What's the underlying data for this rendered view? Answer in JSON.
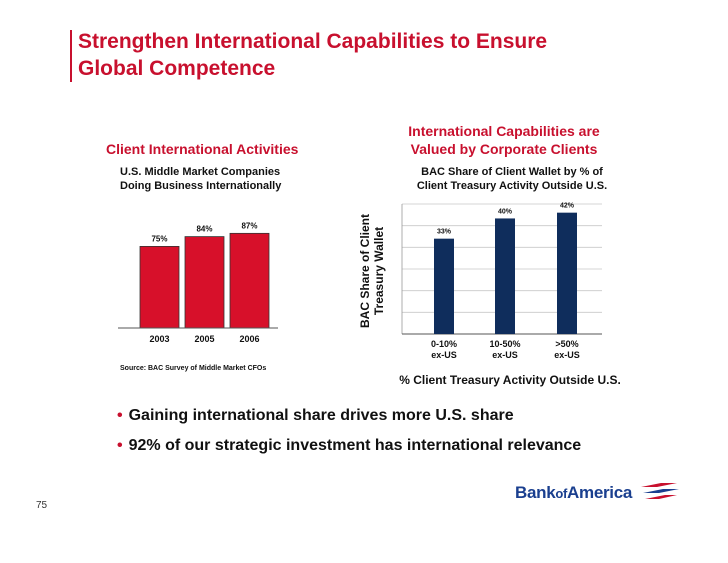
{
  "slide": {
    "title_line1": "Strengthen International Capabilities to Ensure",
    "title_line2": "Global Competence",
    "page_number": "75"
  },
  "left_panel": {
    "heading": "Client International Activities",
    "subtitle_line1": "U.S. Middle Market Companies",
    "subtitle_line2": "Doing Business Internationally",
    "source": "Source:  BAC Survey of Middle Market CFOs"
  },
  "right_panel": {
    "heading_line1": "International Capabilities are",
    "heading_line2": "Valued by Corporate Clients",
    "subtitle_line1": "BAC Share of Client Wallet by % of",
    "subtitle_line2": "Client Treasury Activity Outside U.S."
  },
  "chart_data": [
    {
      "type": "bar",
      "title": "U.S. Middle Market Companies Doing Business Internationally",
      "categories": [
        "2003",
        "2005",
        "2006"
      ],
      "values": [
        75,
        84,
        87
      ],
      "data_labels": [
        "75%",
        "84%",
        "87%"
      ],
      "ylim": [
        0,
        100
      ],
      "xlabel": "",
      "ylabel": "",
      "color": "#d7102a",
      "grid": false
    },
    {
      "type": "bar",
      "title": "BAC Share of Client Wallet by % of Client Treasury Activity Outside U.S.",
      "categories": [
        [
          "0-10%",
          "ex-US"
        ],
        [
          "10-50%",
          "ex-US"
        ],
        [
          ">50%",
          "ex-US"
        ]
      ],
      "values": [
        33,
        40,
        42
      ],
      "data_labels": [
        "33%",
        "40%",
        "42%"
      ],
      "ylim": [
        0,
        45
      ],
      "xlabel": "% Client Treasury Activity Outside U.S.",
      "ylabel_line1": "BAC Share of Client",
      "ylabel_line2": "Treasury Wallet",
      "color": "#0f2d5c",
      "grid": true
    }
  ],
  "bullets": [
    "Gaining international share drives more U.S. share",
    "92% of our strategic investment has international relevance"
  ],
  "logo": {
    "text_bank": "Bank",
    "text_of": "of",
    "text_america": "America",
    "colors": {
      "blue": "#1a3f8f",
      "red": "#c8102e"
    }
  }
}
